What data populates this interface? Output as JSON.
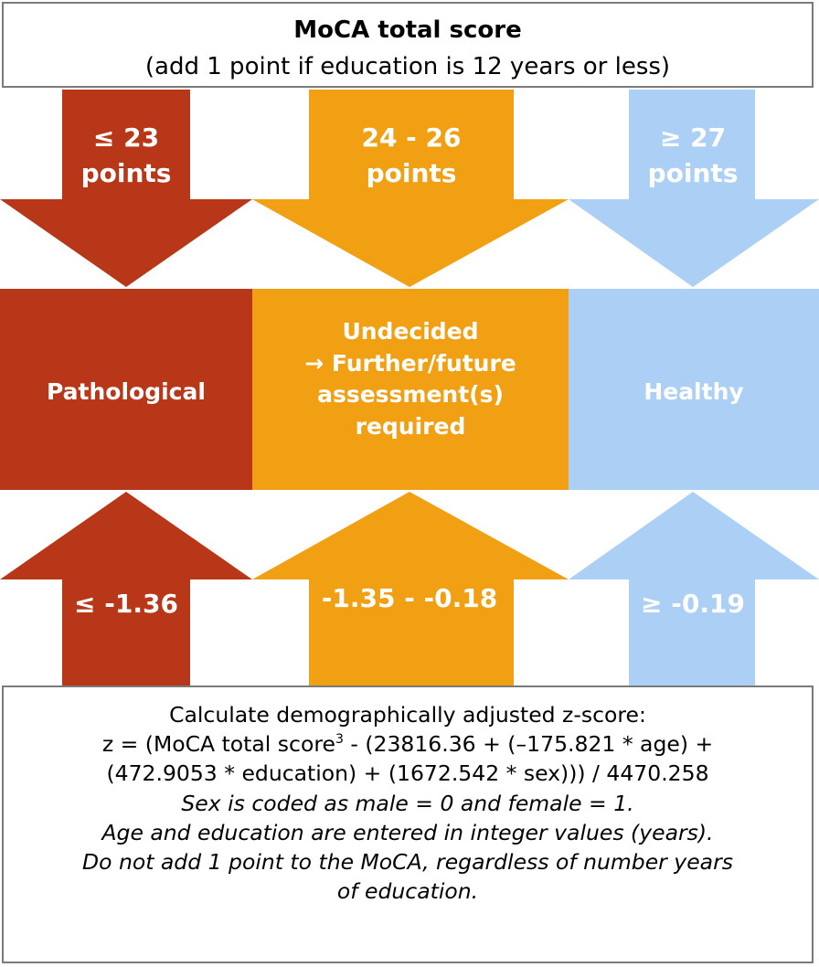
{
  "header": {
    "title": "MoCA total score",
    "subtitle": "(add 1 point if education is 12 years or less)"
  },
  "columns": [
    {
      "top_line1": "≤ 23",
      "top_line2": "points",
      "category": "Pathological",
      "z_range": "≤ -1.36",
      "color": "#b83718"
    },
    {
      "top_line1": "24 - 26",
      "top_line2": "points",
      "category_line1": "Undecided",
      "category_line2": "→ Further/future",
      "category_line3": "assessment(s)",
      "category_line4": "required",
      "z_range": "-1.35 - -0.18",
      "color": "#f2a013"
    },
    {
      "top_line1": "≥ 27",
      "top_line2": "points",
      "category": "Healthy",
      "z_range": "≥ -0.19",
      "color": "#acd0f5"
    }
  ],
  "formula_box": {
    "line1": "Calculate demographically adjusted z-score:",
    "line2a": "z = (MoCA total score",
    "line2_sup": "3",
    "line2b": " - (23816.36 + (–175.821 * age) +",
    "line3": "(472.9053 * education) + (1672.542 * sex))) / 4470.258",
    "note1": "Sex is coded as male = 0 and female = 1.",
    "note2": "Age and education are entered in integer values (years).",
    "note3": "Do not add 1 point to the MoCA, regardless of number years",
    "note4": "of education."
  }
}
